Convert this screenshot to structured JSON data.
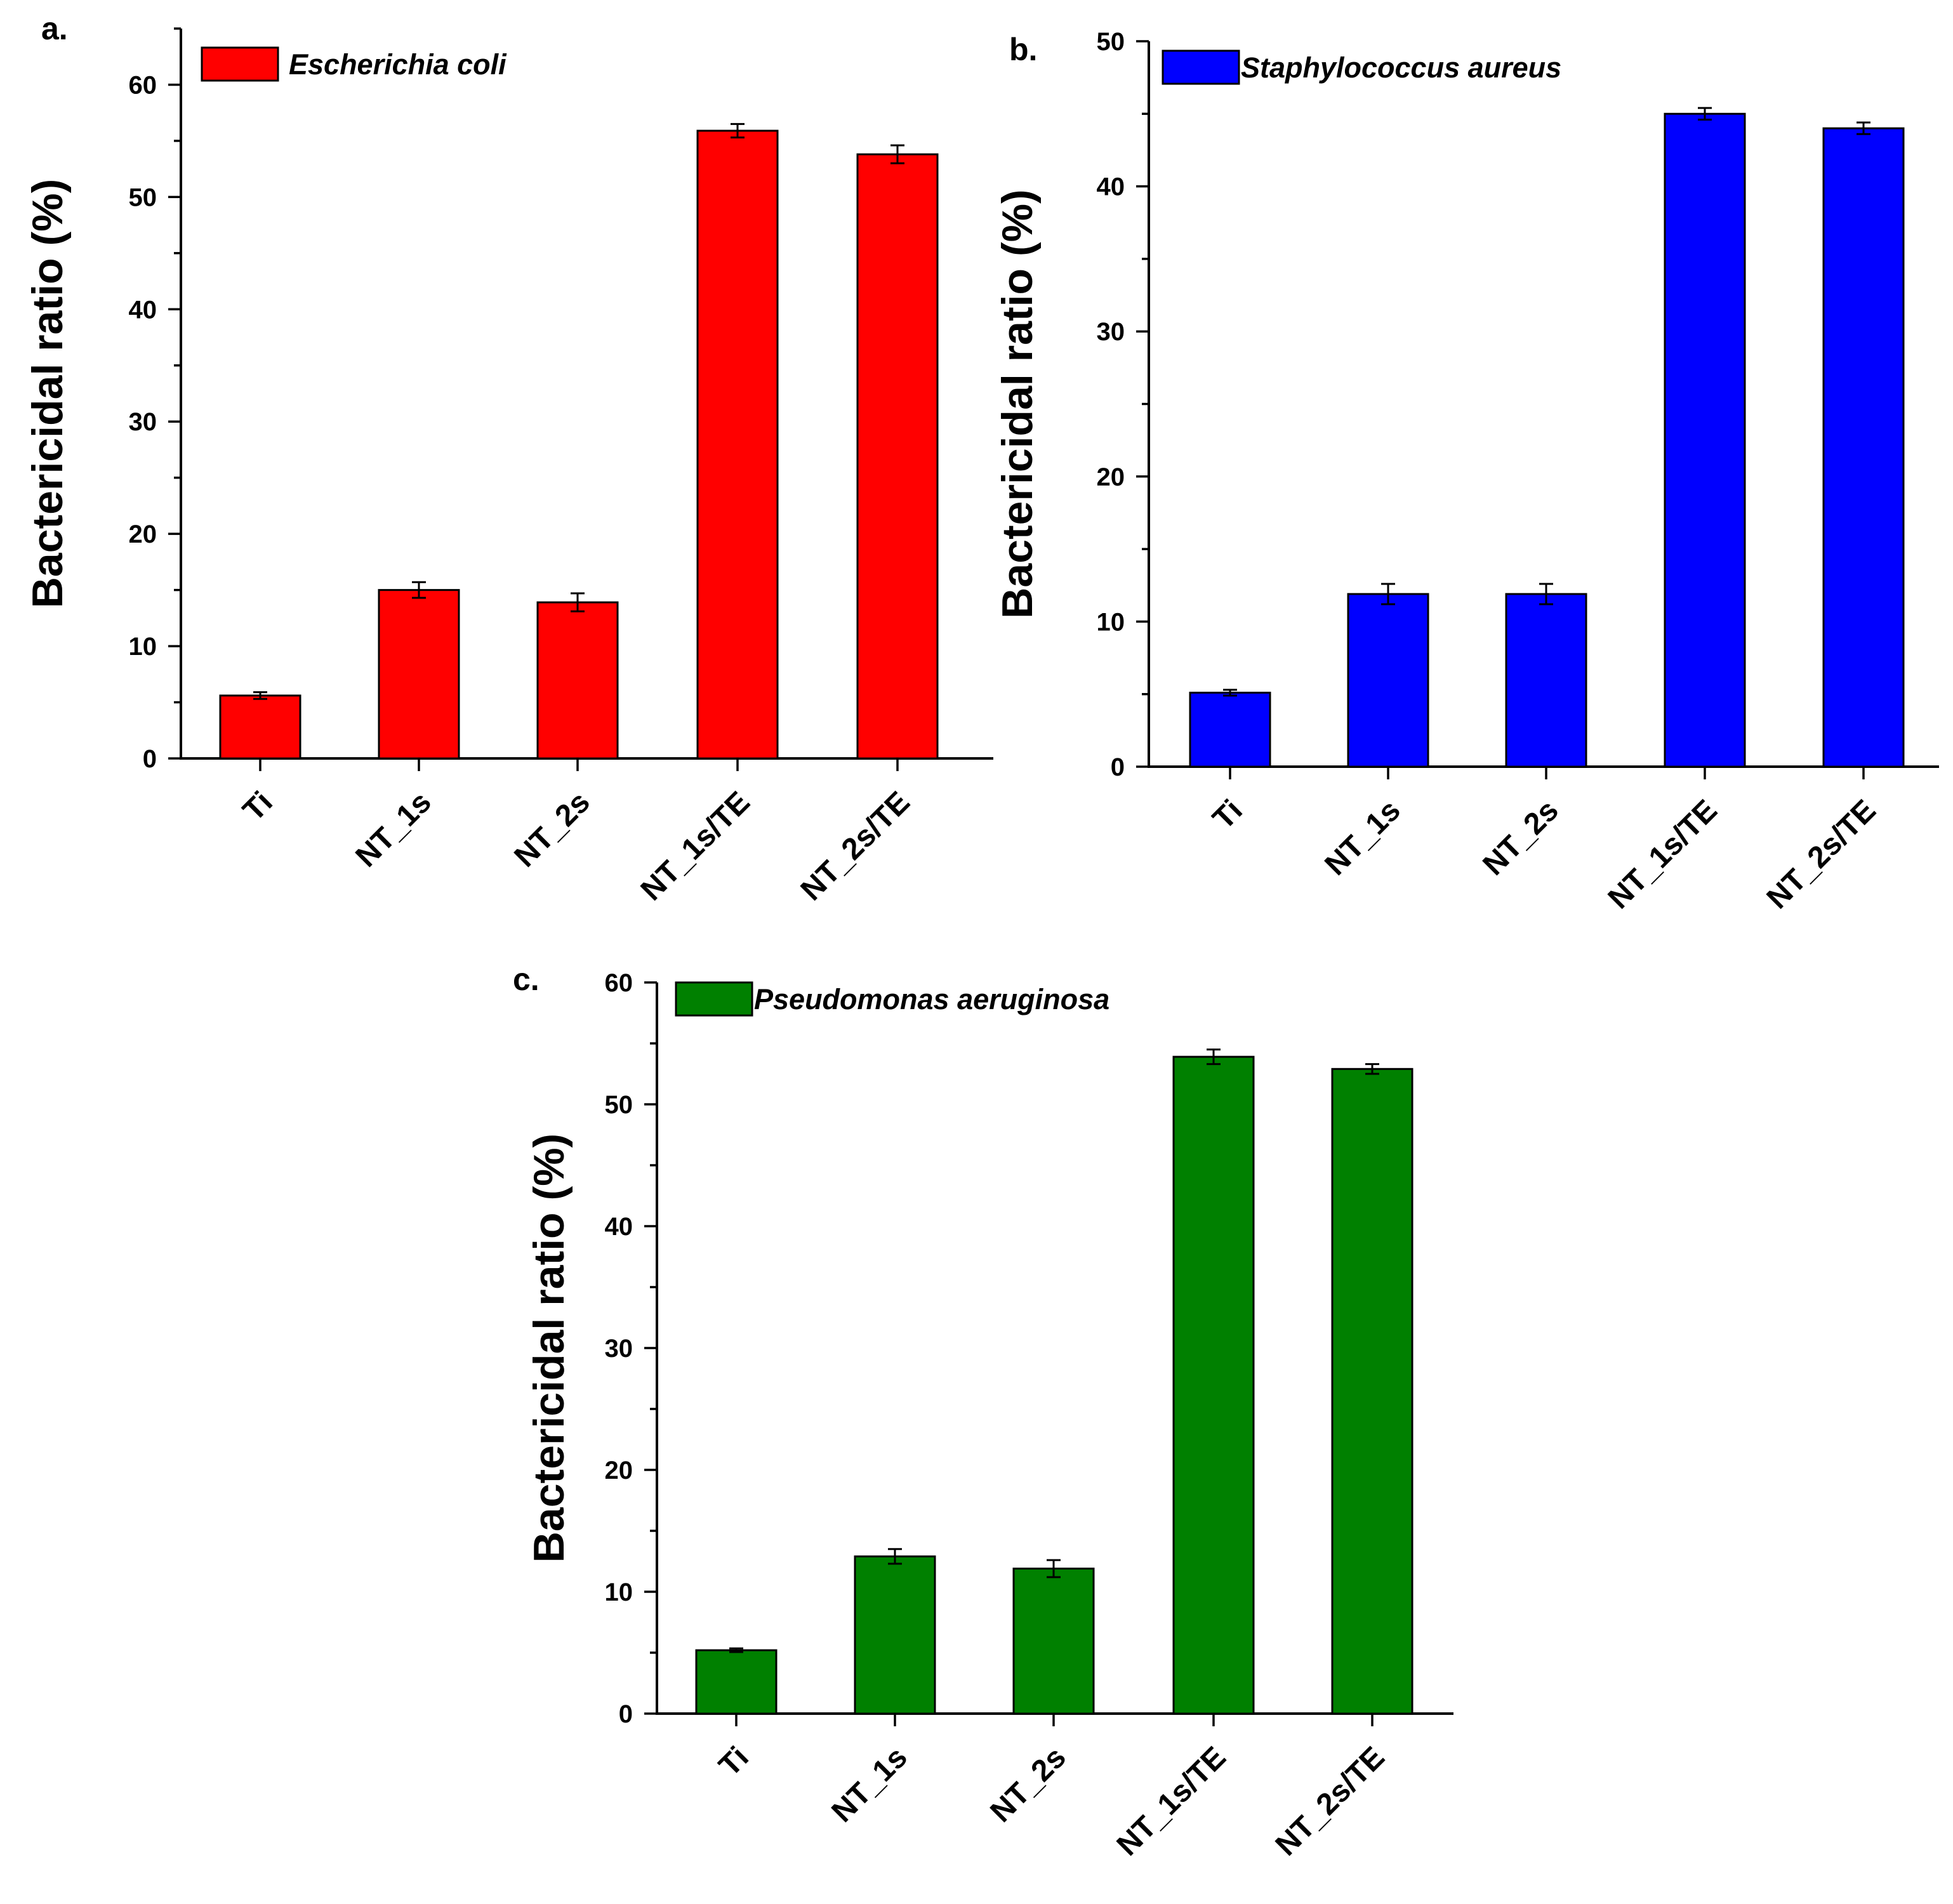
{
  "chart_data": [
    {
      "type": "bar",
      "panel_label": "a.",
      "legend": "Escherichia coli",
      "color": "#ff0000",
      "categories": [
        "Ti",
        "NT_1s",
        "NT_2s",
        "NT_1s/TE",
        "NT_2s/TE"
      ],
      "values": [
        5.6,
        15.0,
        13.9,
        55.9,
        53.8
      ],
      "errors": [
        0.3,
        0.7,
        0.8,
        0.6,
        0.8
      ],
      "ylabel": "Bactericidal ratio (%)",
      "xlabel": "",
      "ylim": [
        0,
        65
      ],
      "yticks": [
        0,
        10,
        20,
        30,
        40,
        50,
        60
      ],
      "ytick_labels": [
        "0",
        "10",
        "20",
        "30",
        "40",
        "50",
        "60"
      ]
    },
    {
      "type": "bar",
      "panel_label": "b.",
      "legend": "Staphylococcus aureus",
      "color": "#0000ff",
      "categories": [
        "Ti",
        "NT_1s",
        "NT_2s",
        "NT_1s/TE",
        "NT_2s/TE"
      ],
      "values": [
        5.1,
        11.9,
        11.9,
        45.0,
        44.0
      ],
      "errors": [
        0.2,
        0.7,
        0.7,
        0.4,
        0.4
      ],
      "ylabel": "Bactericidal ratio (%)",
      "xlabel": "",
      "ylim": [
        0,
        50
      ],
      "yticks": [
        0,
        10,
        20,
        30,
        40,
        50
      ],
      "ytick_labels": [
        "0",
        "10",
        "20",
        "30",
        "40",
        "50"
      ]
    },
    {
      "type": "bar",
      "panel_label": "c.",
      "legend": "Pseudomonas aeruginosa",
      "color": "#008000",
      "categories": [
        "Ti",
        "NT_1s",
        "NT_2s",
        "NT_1s/TE",
        "NT_2s/TE"
      ],
      "values": [
        5.2,
        12.9,
        11.9,
        53.9,
        52.9
      ],
      "errors": [
        0.15,
        0.6,
        0.7,
        0.6,
        0.4
      ],
      "ylabel": "Bactericidal ratio (%)",
      "xlabel": "",
      "ylim": [
        0,
        60
      ],
      "yticks": [
        0,
        10,
        20,
        30,
        40,
        50,
        60
      ],
      "ytick_labels": [
        "0",
        "10",
        "20",
        "30",
        "40",
        "50",
        "60"
      ]
    }
  ]
}
